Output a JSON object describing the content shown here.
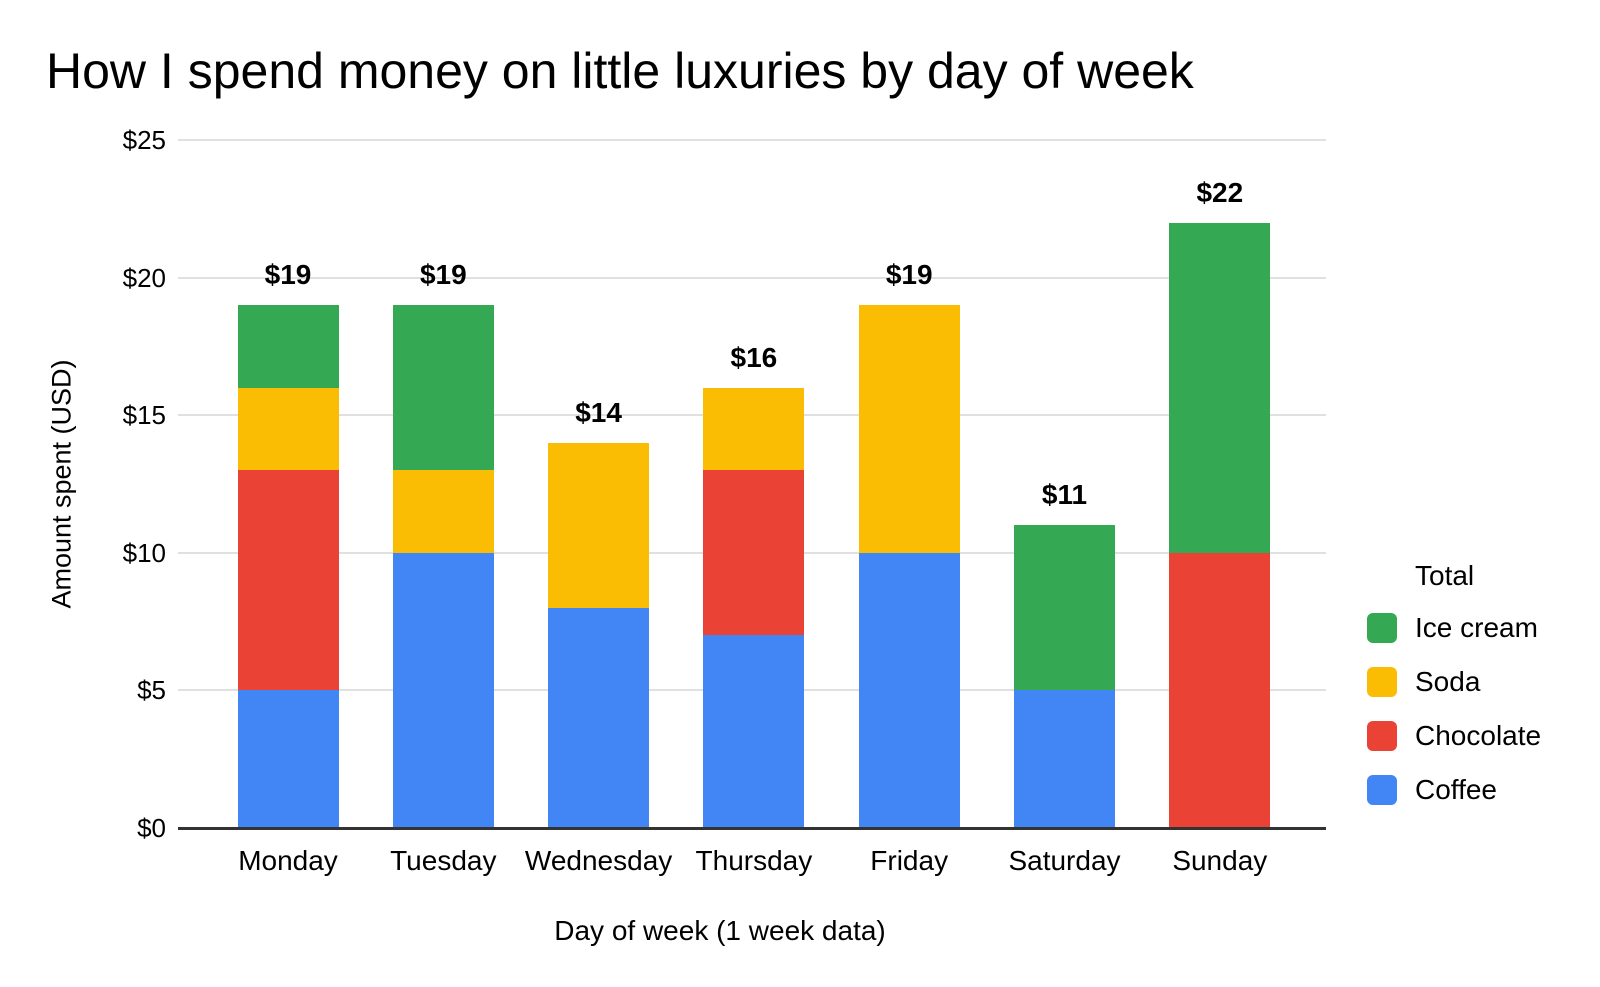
{
  "chart_data": {
    "type": "bar",
    "stacked": true,
    "title": "How I spend money on little luxuries by day of week",
    "xlabel": "Day of week (1 week data)",
    "ylabel": "Amount spent (USD)",
    "categories": [
      "Monday",
      "Tuesday",
      "Wednesday",
      "Thursday",
      "Friday",
      "Saturday",
      "Sunday"
    ],
    "series": [
      {
        "name": "Coffee",
        "color": "#4285F4",
        "values": [
          5,
          10,
          8,
          7,
          10,
          5,
          0
        ]
      },
      {
        "name": "Chocolate",
        "color": "#EA4335",
        "values": [
          8,
          0,
          0,
          6,
          0,
          0,
          10
        ]
      },
      {
        "name": "Soda",
        "color": "#FBBC04",
        "values": [
          3,
          3,
          6,
          3,
          9,
          0,
          0
        ]
      },
      {
        "name": "Ice cream",
        "color": "#34A853",
        "values": [
          3,
          6,
          0,
          0,
          0,
          6,
          12
        ]
      }
    ],
    "totals": [
      "$19",
      "$19",
      "$14",
      "$16",
      "$19",
      "$11",
      "$22"
    ],
    "y_ticks": [
      {
        "value": 0,
        "label": "$0"
      },
      {
        "value": 5,
        "label": "$5"
      },
      {
        "value": 10,
        "label": "$10"
      },
      {
        "value": 15,
        "label": "$15"
      },
      {
        "value": 20,
        "label": "$20"
      },
      {
        "value": 25,
        "label": "$25"
      }
    ],
    "ylim": [
      0,
      25
    ],
    "grid": true,
    "legend": {
      "title": "Total",
      "position": "right",
      "items": [
        "Ice cream",
        "Soda",
        "Chocolate",
        "Coffee"
      ]
    },
    "colors": {
      "grid": "#e0e0e0",
      "axis": "#333333",
      "text": "#000000"
    }
  }
}
